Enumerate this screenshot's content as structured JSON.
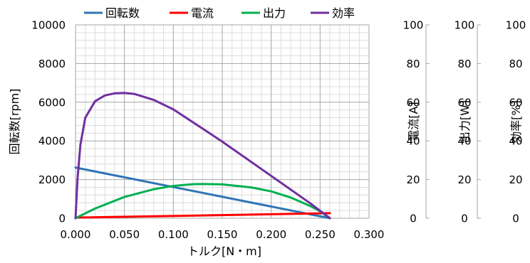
{
  "chart_data": {
    "type": "line",
    "xlabel": "トルク[N・m]",
    "xlim": [
      0,
      0.3
    ],
    "xticks": [
      "0.000",
      "0.050",
      "0.100",
      "0.150",
      "0.200",
      "0.250",
      "0.300"
    ],
    "grid": true,
    "legend_position": "top",
    "axes": [
      {
        "id": "rpm",
        "label": "回転数[rpm]",
        "range": [
          0,
          10000
        ],
        "ticks": [
          "0",
          "2000",
          "4000",
          "6000",
          "8000",
          "10000"
        ],
        "side": "left"
      },
      {
        "id": "current",
        "label": "電流[A]",
        "range": [
          0,
          100
        ],
        "ticks": [
          "0",
          "20",
          "40",
          "60",
          "80",
          "100"
        ],
        "side": "right"
      },
      {
        "id": "power",
        "label": "出力[W]",
        "range": [
          0,
          100
        ],
        "ticks": [
          "0",
          "20",
          "40",
          "60",
          "80",
          "100"
        ],
        "side": "right"
      },
      {
        "id": "eff",
        "label": "効率[%]",
        "range": [
          0,
          100
        ],
        "ticks": [
          "0",
          "20",
          "40",
          "60",
          "80",
          "100"
        ],
        "side": "right"
      }
    ],
    "series": [
      {
        "name": "回転数",
        "axis": "rpm",
        "color": "#2e75b6",
        "x": [
          0,
          0.26
        ],
        "y": [
          2620,
          0
        ]
      },
      {
        "name": "電流",
        "axis": "current",
        "color": "#ff0000",
        "x": [
          0,
          0.26
        ],
        "y": [
          0.3,
          2.6
        ]
      },
      {
        "name": "出力",
        "axis": "power",
        "color": "#00b050",
        "x": [
          0,
          0.02,
          0.05,
          0.08,
          0.1,
          0.12,
          0.13,
          0.15,
          0.18,
          0.2,
          0.22,
          0.24,
          0.25,
          0.26
        ],
        "y": [
          0,
          5.0,
          11.0,
          15.0,
          16.7,
          17.6,
          17.7,
          17.5,
          15.9,
          13.9,
          10.7,
          6.3,
          3.6,
          0
        ]
      },
      {
        "name": "効率",
        "axis": "eff",
        "color": "#7030a0",
        "x": [
          0,
          0.002,
          0.005,
          0.01,
          0.02,
          0.03,
          0.04,
          0.05,
          0.06,
          0.08,
          0.1,
          0.13,
          0.15,
          0.2,
          0.24,
          0.26
        ],
        "y": [
          0,
          20,
          38,
          52,
          60.5,
          63.5,
          64.6,
          64.8,
          64.3,
          61.2,
          56.3,
          46.3,
          39.6,
          21.9,
          7.7,
          0
        ]
      }
    ]
  }
}
